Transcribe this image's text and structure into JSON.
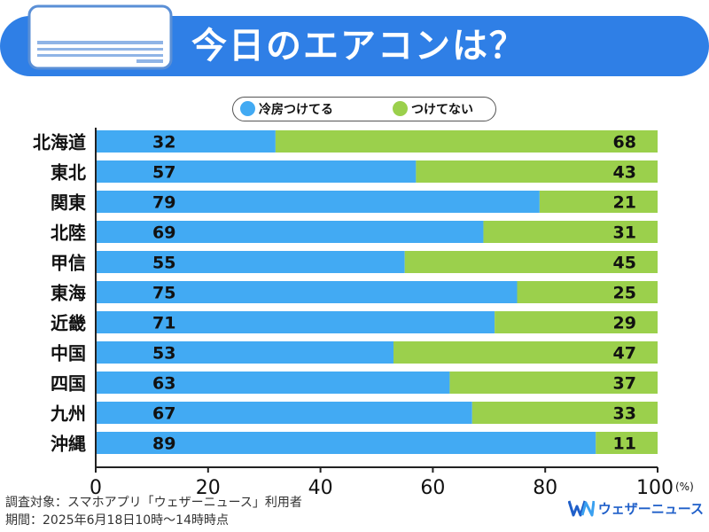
{
  "header": {
    "title": "今日のエアコンは？",
    "icon": "air-conditioner-icon"
  },
  "colors": {
    "header_bg": "#2f7fe6",
    "on": "#42aaf3",
    "off": "#9bd04c",
    "brand": "#1f5fc9"
  },
  "chart_data": {
    "type": "bar",
    "orientation": "horizontal",
    "stacked": true,
    "categories": [
      "北海道",
      "東北",
      "関東",
      "北陸",
      "甲信",
      "東海",
      "近畿",
      "中国",
      "四国",
      "九州",
      "沖縄"
    ],
    "series": [
      {
        "name": "冷房つけてる",
        "values": [
          32,
          57,
          79,
          69,
          55,
          75,
          71,
          53,
          63,
          67,
          89
        ]
      },
      {
        "name": "つけてない",
        "values": [
          68,
          43,
          21,
          31,
          45,
          25,
          29,
          47,
          37,
          33,
          11
        ]
      }
    ],
    "xlim": [
      0,
      100
    ],
    "xticks": [
      "0",
      "20",
      "40",
      "60",
      "80",
      "100"
    ],
    "unit": "(%)",
    "legend_position": "top"
  },
  "footer": {
    "source": "調査対象：スマホアプリ「ウェザーニュース」利用者",
    "period": "期間：2025年6月18日10時〜14時時点",
    "brand": "ウェザーニュース",
    "brand_logo": "WN"
  }
}
